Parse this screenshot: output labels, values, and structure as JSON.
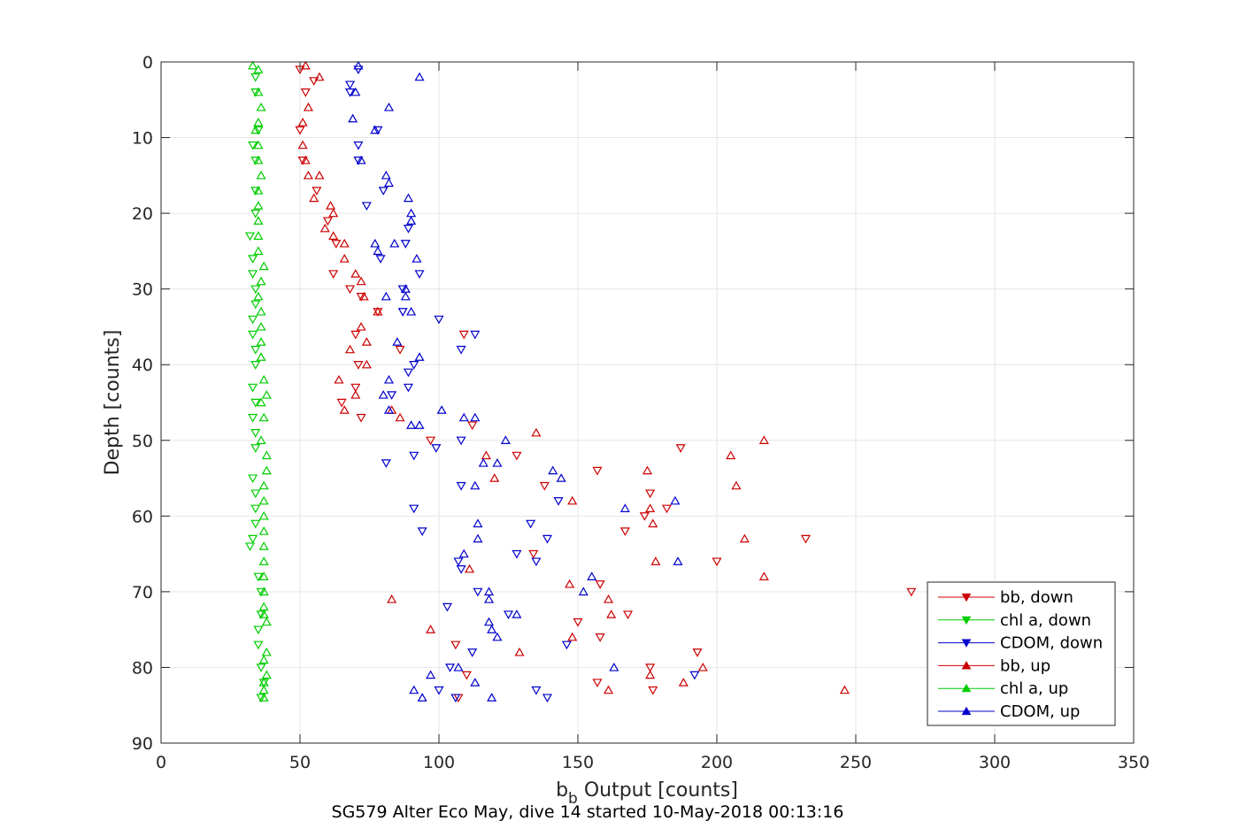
{
  "chart_data": {
    "type": "scatter",
    "title": "",
    "caption": "SG579 Alter Eco May, dive 14 started 10-May-2018 00:13:16",
    "xlabel_main": "b",
    "xlabel_sub": "b",
    "xlabel_rest": " Output [counts]",
    "ylabel": "Depth [counts]",
    "xlim": [
      0,
      350
    ],
    "ylim": [
      0,
      90
    ],
    "y_reversed": true,
    "grid": true,
    "legend_position": "bottom-right",
    "xticks": [
      0,
      50,
      100,
      150,
      200,
      250,
      300,
      350
    ],
    "yticks": [
      0,
      10,
      20,
      30,
      40,
      50,
      60,
      70,
      80,
      90
    ],
    "xtick_labels": [
      "0",
      "50",
      "100",
      "150",
      "200",
      "250",
      "300",
      "350"
    ],
    "ytick_labels": [
      "0",
      "10",
      "20",
      "30",
      "40",
      "50",
      "60",
      "70",
      "80",
      "90"
    ],
    "series": [
      {
        "name": "bb, down",
        "color": "#cc0000",
        "marker": "triangle-down",
        "points": [
          [
            50,
            1
          ],
          [
            55,
            2.5
          ],
          [
            52,
            4
          ],
          [
            50,
            9
          ],
          [
            51,
            13
          ],
          [
            56,
            17
          ],
          [
            60,
            21
          ],
          [
            63,
            24
          ],
          [
            62,
            28
          ],
          [
            68,
            30
          ],
          [
            72,
            31
          ],
          [
            78,
            33
          ],
          [
            70,
            36
          ],
          [
            86,
            38
          ],
          [
            71,
            40
          ],
          [
            70,
            43
          ],
          [
            65,
            45
          ],
          [
            72,
            47
          ],
          [
            97,
            50
          ],
          [
            112,
            48
          ],
          [
            109,
            36
          ],
          [
            128,
            52
          ],
          [
            157,
            54
          ],
          [
            138,
            56
          ],
          [
            176,
            57
          ],
          [
            167,
            62
          ],
          [
            182,
            59
          ],
          [
            174,
            60
          ],
          [
            134,
            65
          ],
          [
            200,
            66
          ],
          [
            158,
            69
          ],
          [
            270,
            70
          ],
          [
            150,
            74
          ],
          [
            168,
            73
          ],
          [
            158,
            76
          ],
          [
            106,
            77
          ],
          [
            193,
            78
          ],
          [
            176,
            80
          ],
          [
            110,
            81
          ],
          [
            157,
            82
          ],
          [
            177,
            83
          ],
          [
            107,
            84
          ],
          [
            232,
            63
          ],
          [
            187,
            51
          ]
        ]
      },
      {
        "name": "chl a, down",
        "color": "#00cc00",
        "marker": "triangle-down",
        "points": [
          [
            34,
            2
          ],
          [
            34,
            4
          ],
          [
            35,
            9
          ],
          [
            33,
            11
          ],
          [
            34,
            13
          ],
          [
            34,
            17
          ],
          [
            34,
            20
          ],
          [
            32,
            23
          ],
          [
            33,
            26
          ],
          [
            33,
            28
          ],
          [
            34,
            30
          ],
          [
            34,
            32
          ],
          [
            33,
            34
          ],
          [
            33,
            36
          ],
          [
            34,
            38
          ],
          [
            34,
            40
          ],
          [
            33,
            43
          ],
          [
            34,
            45
          ],
          [
            33,
            47
          ],
          [
            34,
            49
          ],
          [
            34,
            51
          ],
          [
            33,
            55
          ],
          [
            34,
            57
          ],
          [
            34,
            59
          ],
          [
            34,
            61
          ],
          [
            33,
            63
          ],
          [
            32,
            64
          ],
          [
            35,
            68
          ],
          [
            36,
            70
          ],
          [
            36,
            73
          ],
          [
            35,
            75
          ],
          [
            35,
            77
          ],
          [
            36,
            80
          ],
          [
            37,
            82
          ],
          [
            36,
            84
          ]
        ]
      },
      {
        "name": "CDOM, down",
        "color": "#0000cc",
        "marker": "triangle-down",
        "points": [
          [
            71,
            1
          ],
          [
            68,
            3
          ],
          [
            68,
            4
          ],
          [
            78,
            9
          ],
          [
            71,
            11
          ],
          [
            71,
            13
          ],
          [
            80,
            17
          ],
          [
            74,
            19
          ],
          [
            89,
            22
          ],
          [
            88,
            24
          ],
          [
            79,
            26
          ],
          [
            93,
            28
          ],
          [
            87,
            30
          ],
          [
            87,
            33
          ],
          [
            100,
            34
          ],
          [
            113,
            36
          ],
          [
            108,
            38
          ],
          [
            91,
            40
          ],
          [
            89,
            41
          ],
          [
            89,
            43
          ],
          [
            83,
            44
          ],
          [
            91,
            52
          ],
          [
            81,
            53
          ],
          [
            99,
            51
          ],
          [
            108,
            50
          ],
          [
            108,
            56
          ],
          [
            91,
            59
          ],
          [
            94,
            62
          ],
          [
            107,
            66
          ],
          [
            108,
            67
          ],
          [
            114,
            70
          ],
          [
            125,
            73
          ],
          [
            139,
            63
          ],
          [
            128,
            65
          ],
          [
            133,
            61
          ],
          [
            143,
            58
          ],
          [
            103,
            72
          ],
          [
            112,
            78
          ],
          [
            104,
            80
          ],
          [
            100,
            83
          ],
          [
            106,
            84
          ],
          [
            135,
            83
          ],
          [
            139,
            84
          ],
          [
            192,
            81
          ],
          [
            146,
            77
          ],
          [
            135,
            66
          ]
        ]
      },
      {
        "name": "bb, up",
        "color": "#cc0000",
        "marker": "triangle-up",
        "points": [
          [
            52,
            0.5
          ],
          [
            57,
            2
          ],
          [
            53,
            6
          ],
          [
            51,
            8
          ],
          [
            51,
            11
          ],
          [
            52,
            13
          ],
          [
            53,
            15
          ],
          [
            57,
            15
          ],
          [
            55,
            18
          ],
          [
            61,
            19
          ],
          [
            62,
            20
          ],
          [
            59,
            22
          ],
          [
            62,
            23
          ],
          [
            66,
            24
          ],
          [
            66,
            26
          ],
          [
            70,
            28
          ],
          [
            72,
            29
          ],
          [
            73,
            31
          ],
          [
            78,
            33
          ],
          [
            72,
            35
          ],
          [
            74,
            37
          ],
          [
            68,
            38
          ],
          [
            74,
            40
          ],
          [
            64,
            42
          ],
          [
            70,
            44
          ],
          [
            66,
            46
          ],
          [
            83,
            46
          ],
          [
            86,
            47
          ],
          [
            117,
            52
          ],
          [
            120,
            55
          ],
          [
            135,
            49
          ],
          [
            175,
            54
          ],
          [
            148,
            58
          ],
          [
            205,
            52
          ],
          [
            207,
            56
          ],
          [
            217,
            50
          ],
          [
            176,
            59
          ],
          [
            177,
            61
          ],
          [
            210,
            63
          ],
          [
            178,
            66
          ],
          [
            217,
            68
          ],
          [
            147,
            69
          ],
          [
            161,
            71
          ],
          [
            162,
            73
          ],
          [
            148,
            76
          ],
          [
            129,
            78
          ],
          [
            97,
            75
          ],
          [
            83,
            71
          ],
          [
            195,
            80
          ],
          [
            176,
            81
          ],
          [
            188,
            82
          ],
          [
            161,
            83
          ],
          [
            246,
            83
          ],
          [
            111,
            67
          ]
        ]
      },
      {
        "name": "chl a, up",
        "color": "#00cc00",
        "marker": "triangle-up",
        "points": [
          [
            33,
            0.5
          ],
          [
            35,
            1
          ],
          [
            35,
            4
          ],
          [
            36,
            6
          ],
          [
            35,
            8
          ],
          [
            34,
            9
          ],
          [
            35,
            11
          ],
          [
            35,
            13
          ],
          [
            36,
            15
          ],
          [
            35,
            17
          ],
          [
            35,
            19
          ],
          [
            35,
            21
          ],
          [
            35,
            23
          ],
          [
            35,
            25
          ],
          [
            37,
            27
          ],
          [
            36,
            29
          ],
          [
            35,
            31
          ],
          [
            36,
            33
          ],
          [
            36,
            35
          ],
          [
            36,
            37
          ],
          [
            36,
            39
          ],
          [
            37,
            42
          ],
          [
            38,
            44
          ],
          [
            36,
            45
          ],
          [
            37,
            47
          ],
          [
            36,
            50
          ],
          [
            38,
            52
          ],
          [
            38,
            54
          ],
          [
            37,
            56
          ],
          [
            37,
            58
          ],
          [
            37,
            60
          ],
          [
            37,
            62
          ],
          [
            37,
            64
          ],
          [
            37,
            66
          ],
          [
            37,
            68
          ],
          [
            37,
            70
          ],
          [
            37,
            72
          ],
          [
            37,
            73
          ],
          [
            38,
            74
          ],
          [
            38,
            78
          ],
          [
            37,
            79
          ],
          [
            38,
            81
          ],
          [
            37,
            82
          ],
          [
            37,
            83
          ],
          [
            37,
            84
          ]
        ]
      },
      {
        "name": "CDOM, up",
        "color": "#0000cc",
        "marker": "triangle-up",
        "points": [
          [
            71,
            0.5
          ],
          [
            93,
            2
          ],
          [
            70,
            4
          ],
          [
            82,
            6
          ],
          [
            69,
            7.5
          ],
          [
            77,
            9
          ],
          [
            72,
            13
          ],
          [
            81,
            15
          ],
          [
            82,
            16
          ],
          [
            89,
            18
          ],
          [
            90,
            20
          ],
          [
            90,
            21
          ],
          [
            84,
            24
          ],
          [
            77,
            24
          ],
          [
            78,
            25
          ],
          [
            92,
            26
          ],
          [
            88,
            30
          ],
          [
            88,
            31
          ],
          [
            81,
            31
          ],
          [
            90,
            33
          ],
          [
            85,
            37
          ],
          [
            93,
            39
          ],
          [
            82,
            42
          ],
          [
            80,
            44
          ],
          [
            82,
            46
          ],
          [
            90,
            48
          ],
          [
            93,
            48
          ],
          [
            101,
            46
          ],
          [
            113,
            47
          ],
          [
            109,
            47
          ],
          [
            124,
            50
          ],
          [
            116,
            53
          ],
          [
            121,
            53
          ],
          [
            141,
            54
          ],
          [
            144,
            55
          ],
          [
            113,
            56
          ],
          [
            185,
            58
          ],
          [
            167,
            59
          ],
          [
            114,
            61
          ],
          [
            114,
            63
          ],
          [
            109,
            65
          ],
          [
            155,
            68
          ],
          [
            152,
            70
          ],
          [
            118,
            70
          ],
          [
            118,
            71
          ],
          [
            118,
            74
          ],
          [
            119,
            75
          ],
          [
            121,
            76
          ],
          [
            128,
            73
          ],
          [
            186,
            66
          ],
          [
            163,
            80
          ],
          [
            94,
            84
          ],
          [
            97,
            81
          ],
          [
            107,
            80
          ],
          [
            113,
            82
          ],
          [
            119,
            84
          ],
          [
            91,
            83
          ]
        ]
      }
    ]
  }
}
